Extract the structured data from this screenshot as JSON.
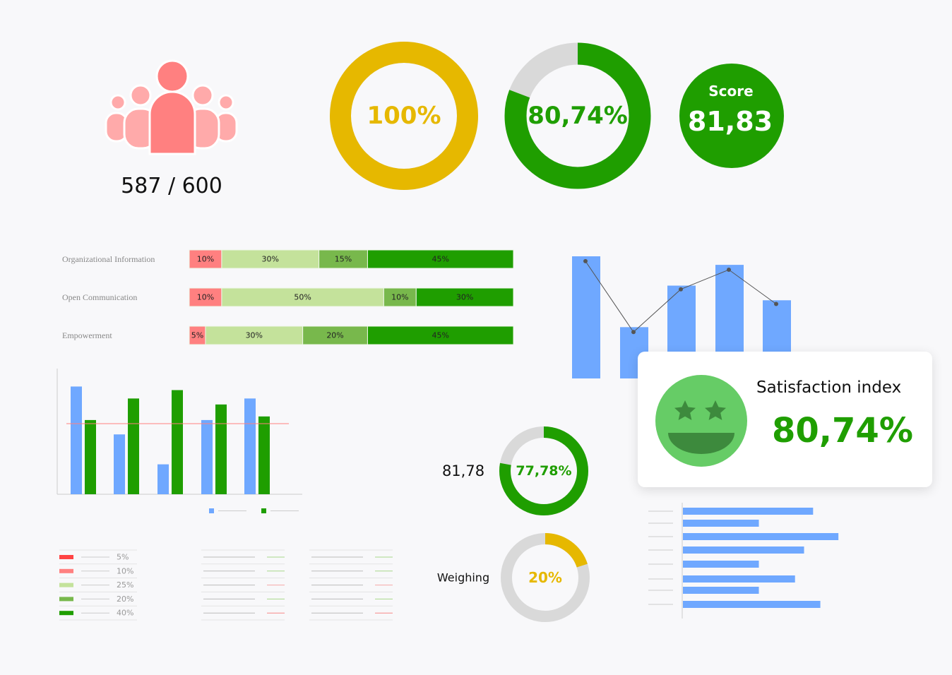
{
  "colors": {
    "green": "#1f9e00",
    "yellow": "#e6b800",
    "grey": "#d9d9d9",
    "blue": "#6fa8ff",
    "pink": "#ff8080",
    "red": "#ff4444",
    "lightgreen": "#c4e29b",
    "midgreen": "#78b84c",
    "paleGreen": "#b5d48e"
  },
  "people": {
    "icon": "people-group-icon",
    "count_text": "587 / 600"
  },
  "donut_attendance": {
    "value": 100,
    "label": "100%"
  },
  "donut_main": {
    "value": 80.74,
    "label": "80,74%"
  },
  "score": {
    "title": "Score",
    "value": "81,83"
  },
  "chart_data": [
    {
      "type": "bar",
      "orientation": "horizontal-stacked",
      "categories": [
        "Organizational Information",
        "Open Communication",
        "Empowerment"
      ],
      "series": [
        {
          "values": [
            10,
            10,
            5
          ],
          "color": "#ff8080"
        },
        {
          "values": [
            30,
            50,
            30
          ],
          "color": "#c4e29b"
        },
        {
          "values": [
            15,
            10,
            20
          ],
          "color": "#78b84c"
        },
        {
          "values": [
            45,
            30,
            45
          ],
          "color": "#1f9e00"
        }
      ],
      "segment_labels": [
        [
          "10%",
          "30%",
          "15%",
          "45%"
        ],
        [
          "10%",
          "50%",
          "10%",
          "30%"
        ],
        [
          "5%",
          "30%",
          "20%",
          "45%"
        ]
      ]
    },
    {
      "type": "bar+line",
      "bars": [
        100,
        42,
        76,
        93,
        64
      ],
      "line": [
        96,
        38,
        73,
        89,
        61
      ],
      "bar_color": "#6fa8ff",
      "line_color": "#555555"
    },
    {
      "type": "bar",
      "grouped": true,
      "series": [
        {
          "values": [
            90,
            50,
            25,
            62,
            80
          ],
          "color": "#6fa8ff"
        },
        {
          "values": [
            62,
            80,
            87,
            75,
            65
          ],
          "color": "#1f9e00"
        }
      ],
      "reference_line": 59,
      "reference_color": "#ff8080",
      "ylim": [
        0,
        105
      ]
    },
    {
      "type": "bar",
      "orientation": "horizontal",
      "values": [
        72,
        42,
        86,
        67,
        42,
        62,
        42,
        76
      ],
      "bar_color": "#6fa8ff",
      "xlim": [
        0,
        100
      ]
    }
  ],
  "legend_table": [
    {
      "color": "#ff4444",
      "label": "5%"
    },
    {
      "color": "#ff8080",
      "label": "10%"
    },
    {
      "color": "#c4e29b",
      "label": "25%"
    },
    {
      "color": "#78b84c",
      "label": "20%"
    },
    {
      "color": "#1f9e00",
      "label": "40%"
    }
  ],
  "placeholder_tables": {
    "row_marks": [
      "#a8d88a",
      "#a8d88a",
      "#f5a8a8",
      "#a8d88a",
      "#f58888"
    ]
  },
  "small_donut_1": {
    "side_label": "81,78",
    "value": 77.78,
    "label": "77,78%"
  },
  "small_donut_2": {
    "side_label": "Weighing",
    "value": 20,
    "label": "20%"
  },
  "satisfaction": {
    "title": "Satisfaction index",
    "value": "80,74%",
    "icon": "star-eyes-smiley-icon"
  }
}
